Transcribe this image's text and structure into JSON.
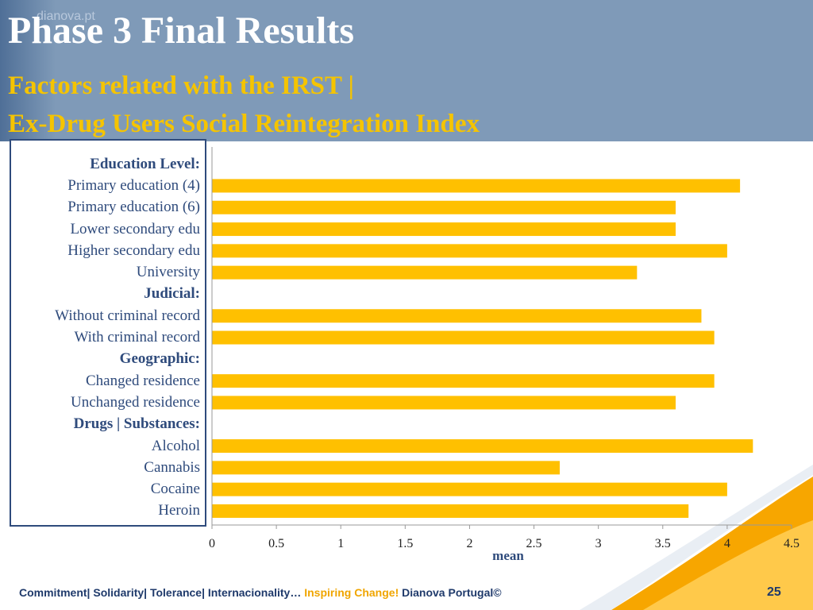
{
  "header": {
    "watermark": "dianova.pt",
    "title": "Phase 3 Final Results",
    "subtitle_line1": "Factors related with the IRST |",
    "subtitle_line2": "Ex-Drug Users Social Reintegration Index"
  },
  "chart_data": {
    "type": "bar",
    "orientation": "horizontal",
    "xlabel": "mean",
    "xlim": [
      0,
      4.5
    ],
    "xticks": [
      "0",
      "0.5",
      "1",
      "1.5",
      "2",
      "2.5",
      "3",
      "3.5",
      "4",
      "4.5"
    ],
    "categories": [
      {
        "label": "Education Level:",
        "group": true,
        "value": null
      },
      {
        "label": "Primary education (4)",
        "group": false,
        "value": 4.1
      },
      {
        "label": "Primary education (6)",
        "group": false,
        "value": 3.6
      },
      {
        "label": "Lower secondary edu",
        "group": false,
        "value": 3.6
      },
      {
        "label": "Higher secondary edu",
        "group": false,
        "value": 4.0
      },
      {
        "label": "University",
        "group": false,
        "value": 3.3
      },
      {
        "label": "Judicial:",
        "group": true,
        "value": null
      },
      {
        "label": "Without criminal record",
        "group": false,
        "value": 3.8
      },
      {
        "label": "With criminal record",
        "group": false,
        "value": 3.9
      },
      {
        "label": "Geographic:",
        "group": true,
        "value": null
      },
      {
        "label": "Changed residence",
        "group": false,
        "value": 3.9
      },
      {
        "label": "Unchanged residence",
        "group": false,
        "value": 3.6
      },
      {
        "label": "Drugs | Substances:",
        "group": true,
        "value": null
      },
      {
        "label": "Alcohol",
        "group": false,
        "value": 4.2
      },
      {
        "label": "Cannabis",
        "group": false,
        "value": 2.7
      },
      {
        "label": "Cocaine",
        "group": false,
        "value": 4.0
      },
      {
        "label": "Heroin",
        "group": false,
        "value": 3.7
      }
    ],
    "bar_color": "#ffc000",
    "grid": false
  },
  "footer": {
    "values_text": "Commitment| Solidarity| Tolerance| Internacionality…",
    "accent_text": "Inspiring Change!",
    "org_text": "Dianova Portugal©",
    "page_number": "25"
  },
  "colors": {
    "header_bg": "#7f9ab8",
    "title": "#ffffff",
    "subtitle": "#f5c400",
    "label_text": "#2f4b7c",
    "footer_text": "#1f3a6b",
    "accent": "#f0a500"
  }
}
